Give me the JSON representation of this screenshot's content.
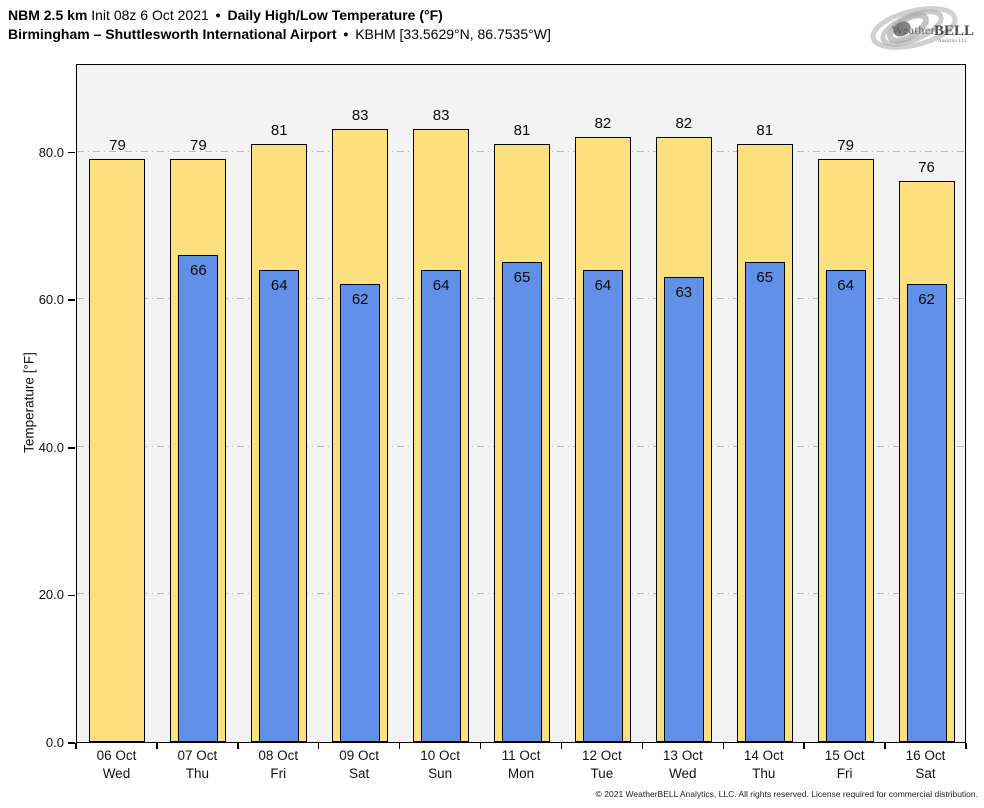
{
  "header": {
    "model": "NBM 2.5 km",
    "init": "Init 08z 6 Oct 2021",
    "sep1": "•",
    "product": "Daily High/Low Temperature (°F)",
    "station": "Birmingham – Shuttlesworth International Airport",
    "sep2": "•",
    "station_id": "KBHM [33.5629°N, 86.7535°W]"
  },
  "logo": {
    "brand_left": "Weather",
    "brand_right": "BELL",
    "brand_sub": "Analytics LLC"
  },
  "chart_data": {
    "type": "bar",
    "title": "NBM 2.5 km Daily High/Low Temperature (°F) — Birmingham KBHM",
    "ylabel": "Temperature [°F]",
    "ylim": [
      0,
      92
    ],
    "yticks": [
      0,
      20,
      40,
      60,
      80
    ],
    "ytick_labels": [
      "0.0",
      "20.0",
      "40.0",
      "60.0",
      "80.0"
    ],
    "grid": "horizontal dash-dot",
    "plot_background": "#f3f3f3",
    "bar_outline": "#000000",
    "categories": [
      {
        "date": "06 Oct",
        "day": "Wed"
      },
      {
        "date": "07 Oct",
        "day": "Thu"
      },
      {
        "date": "08 Oct",
        "day": "Fri"
      },
      {
        "date": "09 Oct",
        "day": "Sat"
      },
      {
        "date": "10 Oct",
        "day": "Sun"
      },
      {
        "date": "11 Oct",
        "day": "Mon"
      },
      {
        "date": "12 Oct",
        "day": "Tue"
      },
      {
        "date": "13 Oct",
        "day": "Wed"
      },
      {
        "date": "14 Oct",
        "day": "Thu"
      },
      {
        "date": "15 Oct",
        "day": "Fri"
      },
      {
        "date": "16 Oct",
        "day": "Sat"
      }
    ],
    "series": [
      {
        "name": "High",
        "color": "#FDE07E",
        "values": [
          79,
          79,
          81,
          83,
          83,
          81,
          82,
          82,
          81,
          79,
          76
        ]
      },
      {
        "name": "Low",
        "color": "#6190E8",
        "values": [
          null,
          66,
          64,
          62,
          64,
          65,
          64,
          63,
          65,
          64,
          62
        ]
      }
    ]
  },
  "footer": {
    "copyright": "© 2021 WeatherBELL Analytics, LLC. All rights reserved. License required for commercial distribution."
  }
}
